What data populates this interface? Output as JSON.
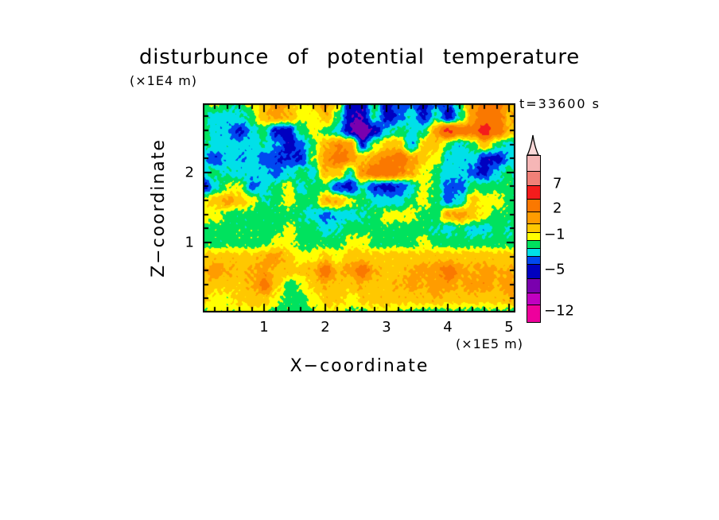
{
  "title": "disturbunce of potential temperature",
  "annotations": {
    "time_label": "t=33600 s",
    "y_units": "(×1E4 m)",
    "x_units": "(×1E5 m)"
  },
  "axes": {
    "x": {
      "label": "X−coordinate",
      "min": 0,
      "max": 5.1,
      "major_ticks": [
        1,
        2,
        3,
        4,
        5
      ],
      "minor_step": 0.2
    },
    "y": {
      "label": "Z−coordinate",
      "min": 0,
      "max": 3.0,
      "major_ticks": [
        1,
        2
      ],
      "minor_step": 0.2
    }
  },
  "colorbar": {
    "arrow_color": "#fbd9d9",
    "segments": [
      {
        "color": "#f6b6b6",
        "height": 19
      },
      {
        "color": "#f08078",
        "height": 17
      },
      {
        "color": "#f41c1c",
        "height": 16
      },
      {
        "color": "#fa7800",
        "height": 15
      },
      {
        "color": "#ff9c00",
        "height": 14
      },
      {
        "color": "#ffc800",
        "height": 10
      },
      {
        "color": "#ffff00",
        "height": 9
      },
      {
        "color": "#00e25e",
        "height": 9
      },
      {
        "color": "#00e0e8",
        "height": 9
      },
      {
        "color": "#0048f0",
        "height": 9
      },
      {
        "color": "#0000c0",
        "height": 17
      },
      {
        "color": "#7a00ae",
        "height": 17
      },
      {
        "color": "#c000c0",
        "height": 14
      },
      {
        "color": "#ee009c",
        "height": 21
      }
    ],
    "labels": [
      {
        "text": "7",
        "after": 2
      },
      {
        "text": "2",
        "after": 4
      },
      {
        "text": "−1",
        "after": 7
      },
      {
        "text": "−5",
        "after": 11
      },
      {
        "text": "−12",
        "after": 14
      }
    ]
  },
  "chart_data": {
    "type": "heatmap",
    "title": "disturbunce of potential temperature",
    "xlabel": "X−coordinate (×1E5 m)",
    "ylabel": "Z−coordinate (×1E4 m)",
    "x_range": [
      0,
      5.2
    ],
    "z_range": [
      3.0,
      0
    ],
    "grid_x_step": 0.2,
    "grid_z_step": 0.2,
    "levels": [
      -9,
      -7,
      -5,
      -4,
      -3,
      -2,
      -1,
      0,
      1,
      2,
      4,
      7,
      9,
      12
    ],
    "palette": [
      "#ee009c",
      "#c000c0",
      "#7a00ae",
      "#0000c0",
      "#0048f0",
      "#00e0e8",
      "#00e25e",
      "#ffff00",
      "#ffc800",
      "#ff9c00",
      "#fa7800",
      "#f41c1c",
      "#f08078",
      "#f6b6b6",
      "#fbd9d9"
    ],
    "grid": [
      [
        -1.5,
        -0.7,
        -1.5,
        -1.8,
        -0.5,
        0.5,
        1.8,
        0.8,
        -0.5,
        0.3,
        1.5,
        -0.5,
        -4.5,
        -4.5,
        -1.5,
        -4.5,
        -3.5,
        -3.5,
        -4.5,
        -3,
        -4,
        -1.5,
        1.5,
        2.8,
        2.2,
        0.8,
        -0.3
      ],
      [
        -1.8,
        -2.5,
        -2.5,
        -2.2,
        -1.5,
        0.8,
        1.5,
        1,
        -0.5,
        -0.5,
        1,
        -1.5,
        -5,
        -4.8,
        -1.8,
        -4.8,
        -3.5,
        -2,
        -4.5,
        -2,
        -4.5,
        -2,
        1.5,
        3.2,
        2.8,
        0.8,
        0.5
      ],
      [
        -1.5,
        -2.5,
        -2.8,
        -4.5,
        -2.5,
        -1.5,
        -4.5,
        -4.5,
        -1.5,
        -0.5,
        -1.5,
        -2.5,
        -4.8,
        -6.5,
        -4.8,
        -2.5,
        -1.5,
        -2.5,
        -2,
        1.5,
        4.5,
        2.8,
        2.8,
        5,
        2.8,
        1,
        -0.5
      ],
      [
        -1.8,
        -2.2,
        -2.5,
        -2.5,
        -2.5,
        -2,
        -3,
        -4.5,
        -3.5,
        -1.5,
        1,
        2,
        1.5,
        -4,
        -1,
        0.5,
        0.5,
        -3,
        0.5,
        0.5,
        -1.5,
        -2.5,
        -1.5,
        0.5,
        -1.5,
        -2.5,
        -2.5
      ],
      [
        -2.5,
        -4,
        -2.5,
        -3,
        -2.5,
        -3.5,
        -4,
        -4,
        -4,
        -1,
        1.5,
        2.8,
        1.8,
        0.5,
        1.5,
        2.2,
        2.8,
        1.5,
        0.5,
        -0.5,
        -2.5,
        -2.5,
        -2.5,
        -4.5,
        -4.5,
        -2.5,
        -3.5
      ],
      [
        -2.2,
        -1.5,
        -2.2,
        -2.5,
        -2.5,
        -2.5,
        -3.5,
        -2.5,
        -1.5,
        -2.5,
        0.8,
        0.5,
        -2,
        1.8,
        2.8,
        3.2,
        2.2,
        1,
        -0.5,
        -1.5,
        -2.5,
        -2.5,
        -3.5,
        -4.5,
        -2.5,
        -1.5,
        -4
      ],
      [
        -4.5,
        -2.5,
        -1,
        -0.5,
        -3.5,
        -2.5,
        -1.5,
        -0.5,
        -2.5,
        -1.5,
        -1.5,
        -4,
        -4.5,
        -2,
        -4,
        -4.5,
        -4,
        -2.5,
        -0.5,
        -1.5,
        -3.5,
        -3.5,
        -1.5,
        -1.5,
        -1.5,
        -1.5,
        -3.5
      ],
      [
        -0.5,
        0.5,
        1.5,
        0.5,
        -0.5,
        -2,
        -1.5,
        -0.5,
        -1.5,
        -1.5,
        1,
        0.8,
        -0.5,
        -1.5,
        -2.5,
        -2.5,
        -2.5,
        -1.5,
        -0.5,
        -1.5,
        -3.5,
        -2.5,
        0.5,
        -0.5,
        -0.5,
        -1.5,
        -1.5
      ],
      [
        -0.5,
        -0.5,
        -1.5,
        -1.5,
        -1.5,
        -1.5,
        -1.5,
        -1.5,
        -2,
        -2.5,
        -3.3,
        -2.8,
        -2.5,
        -2,
        -1.5,
        -0.5,
        -0.5,
        -0.5,
        -1.5,
        -1.5,
        1.2,
        1.5,
        0.5,
        -0.5,
        -1.5,
        -1.5,
        -1.5
      ],
      [
        -1.5,
        -1.5,
        -1.5,
        -1.5,
        -1.5,
        -1.5,
        -1.5,
        -0.5,
        -1.5,
        -1.5,
        -2.5,
        -2,
        -1.5,
        -1.5,
        -1.5,
        -1.5,
        -1.5,
        -1.5,
        -1.5,
        -2,
        -2.5,
        -1.5,
        -2.5,
        -2.5,
        -1.5,
        -2,
        -1.5
      ],
      [
        -1.5,
        -1.5,
        -1.5,
        -1.5,
        -1.5,
        -1.5,
        -0.5,
        -0.5,
        -1.5,
        -1.5,
        -1.5,
        -1.5,
        -0.5,
        -0.5,
        -1.5,
        -1.5,
        -1.5,
        -1.5,
        -0.5,
        -1.5,
        -1.5,
        -1.5,
        -1.5,
        -1.5,
        -1.5,
        -1.5,
        -1.5
      ],
      [
        0.5,
        0.5,
        0.5,
        0.5,
        0.5,
        1,
        1.5,
        0.5,
        -0.5,
        -0.5,
        0.5,
        -0.5,
        0.5,
        0.5,
        0.5,
        0.5,
        0.5,
        0.5,
        0.5,
        0.5,
        0.5,
        0.5,
        0.5,
        0.5,
        0.5,
        0.5,
        -0.5
      ],
      [
        1,
        1.8,
        1,
        0.5,
        1,
        1.5,
        0.5,
        0.5,
        0.5,
        1,
        2.8,
        0.8,
        1.5,
        2.8,
        1,
        0.5,
        0.5,
        1,
        1.5,
        1.5,
        2.8,
        1.5,
        1,
        1.5,
        1,
        1,
        0.5
      ],
      [
        0.5,
        0.5,
        0.5,
        0.5,
        1,
        2.5,
        0.5,
        -1.5,
        -1,
        0.5,
        1,
        0.5,
        0.5,
        1,
        0.5,
        0.5,
        1,
        1.5,
        1,
        1.5,
        1.5,
        1,
        1.5,
        1.5,
        1,
        1.5,
        1
      ],
      [
        0.5,
        -0.5,
        -0.5,
        0.5,
        0.5,
        0.5,
        -0.5,
        -1.5,
        -1.5,
        -0.5,
        0.5,
        0.5,
        -0.5,
        0.5,
        0.5,
        0.5,
        0.5,
        0.5,
        0.5,
        1,
        0.5,
        0.5,
        0.5,
        0.5,
        0.5,
        1,
        0.5
      ],
      [
        -1.5,
        -0.5,
        -0.5,
        -1,
        -0.5,
        -0.5,
        -1.5,
        -1.5,
        -1.5,
        -1,
        -0.5,
        -0.5,
        -1,
        -1.5,
        -0.5,
        -0.5,
        -1,
        -1.5,
        -1.5,
        -1.5,
        -1.5,
        -1.5,
        -1.5,
        -1.5,
        -1.5,
        -1.5,
        -1.5
      ]
    ]
  }
}
